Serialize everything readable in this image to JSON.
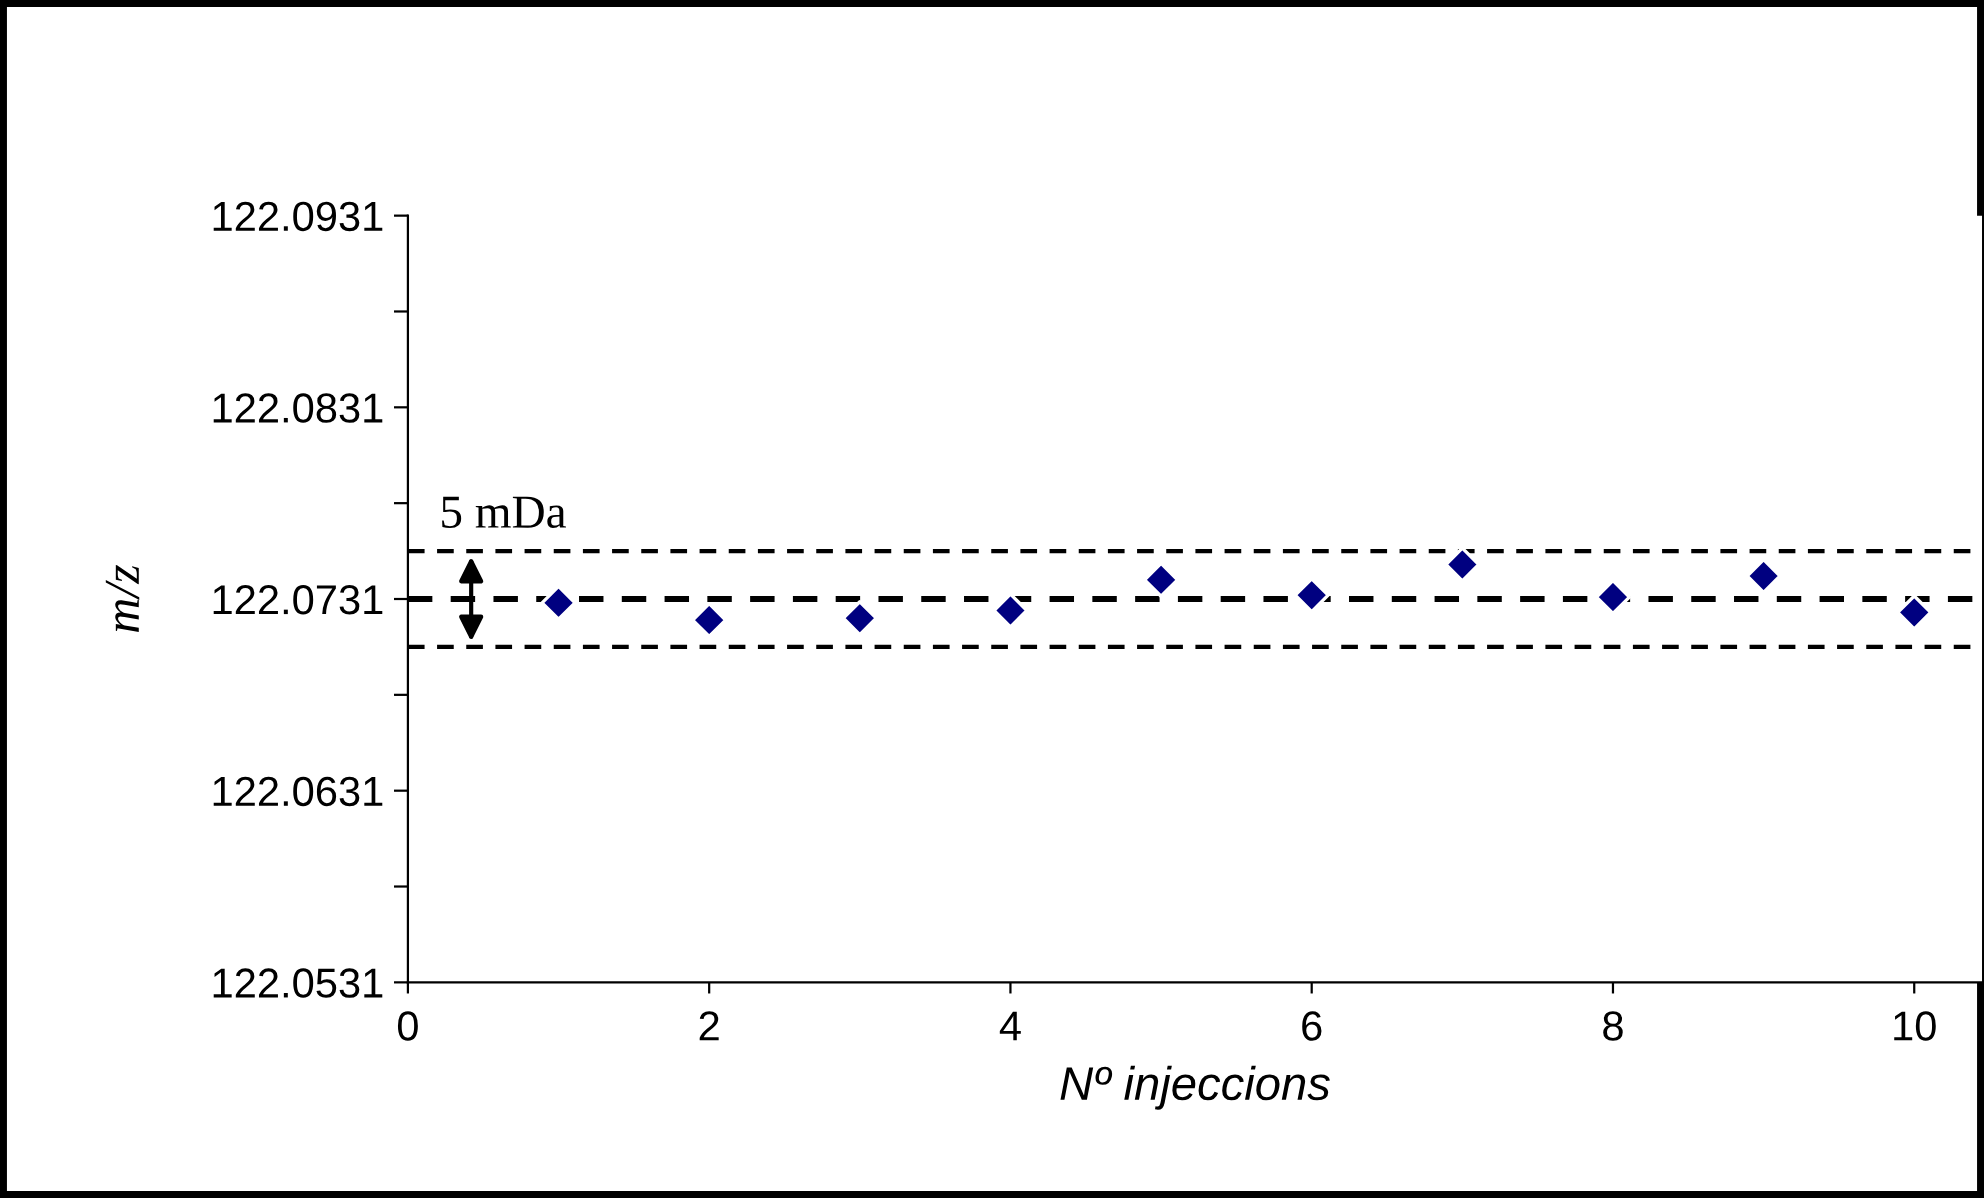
{
  "chart_data": {
    "type": "scatter",
    "xlabel": "Nº injeccions",
    "ylabel": "m/z",
    "x": [
      1,
      2,
      3,
      4,
      5,
      6,
      7,
      8,
      9,
      10
    ],
    "series": [
      {
        "color": "#000080",
        "values": [
          122.0729,
          122.072,
          122.0721,
          122.0725,
          122.0741,
          122.0733,
          122.0749,
          122.0732,
          122.0743,
          122.0724
        ]
      }
    ],
    "marker": "diamond",
    "xlim": [
      0,
      10.45
    ],
    "xticks": [
      0,
      2,
      4,
      6,
      8,
      10
    ],
    "ylim": [
      122.0531,
      122.0931
    ],
    "yticks": [
      {
        "value": 122.0531,
        "label": "122.0531"
      },
      {
        "value": 122.0581,
        "label": null
      },
      {
        "value": 122.0631,
        "label": "122.0631"
      },
      {
        "value": 122.0681,
        "label": null
      },
      {
        "value": 122.0731,
        "label": "122.0731"
      },
      {
        "value": 122.0781,
        "label": null
      },
      {
        "value": 122.0831,
        "label": "122.0831"
      },
      {
        "value": 122.0881,
        "label": null
      },
      {
        "value": 122.0931,
        "label": "122.0931"
      }
    ],
    "ref_lines": [
      {
        "axis": "y",
        "value": 122.0731,
        "color": "#000000",
        "line_style": "dashed"
      },
      {
        "axis": "y",
        "value": 122.0756,
        "color": "#000000",
        "line_style": "dashed"
      },
      {
        "axis": "y",
        "value": 122.0706,
        "color": "#000000",
        "line_style": "dashed"
      }
    ],
    "annotations": [
      "5 mDa"
    ],
    "grid": false,
    "legend": false
  }
}
